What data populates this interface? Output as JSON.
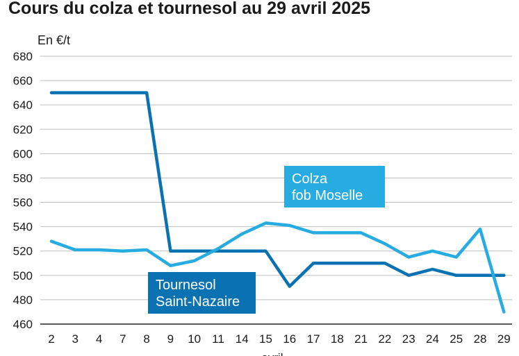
{
  "chart_data": {
    "type": "line",
    "title": "Cours du colza et tournesol au 29 avril 2025",
    "ylabel": "En €/t",
    "xlabel": "avril",
    "ylim": [
      460,
      680
    ],
    "yticks": [
      460,
      480,
      500,
      520,
      540,
      560,
      580,
      600,
      620,
      640,
      660,
      680
    ],
    "categories": [
      "2",
      "3",
      "4",
      "7",
      "8",
      "9",
      "10",
      "11",
      "14",
      "15",
      "16",
      "17",
      "18",
      "21",
      "22",
      "23",
      "24",
      "25",
      "28",
      "29"
    ],
    "grid": "horizontal",
    "series": [
      {
        "name": "Tournesol Saint-Nazaire",
        "label_lines": [
          "Tournesol",
          "Saint-Nazaire"
        ],
        "color": "#0a72b3",
        "values": [
          650,
          650,
          650,
          650,
          650,
          520,
          520,
          520,
          520,
          520,
          491,
          510,
          510,
          510,
          510,
          500,
          505,
          500,
          500,
          500
        ]
      },
      {
        "name": "Colza fob Moselle",
        "label_lines": [
          "Colza",
          "fob Moselle"
        ],
        "color": "#26ace0",
        "values": [
          528,
          521,
          521,
          520,
          521,
          508,
          512,
          522,
          534,
          543,
          541,
          535,
          535,
          535,
          526,
          515,
          520,
          515,
          538,
          470
        ]
      }
    ]
  }
}
